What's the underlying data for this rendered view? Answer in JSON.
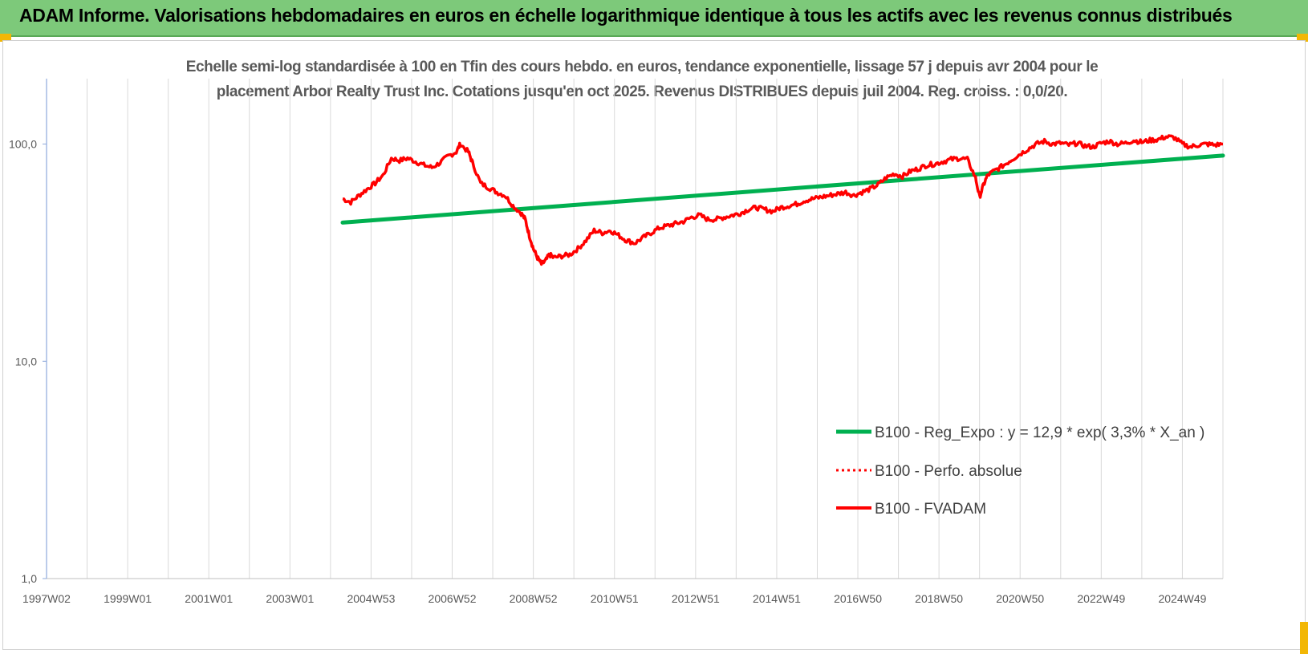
{
  "header": {
    "title": "ADAM Informe. Valorisations hebdomadaires en euros en échelle logarithmique identique à tous les actifs avec les revenus connus distribués"
  },
  "colors": {
    "banner": "#7dc97a",
    "corner_accent": "#f2b705",
    "trend_line": "#00b050",
    "fvadam_line": "#ff0000",
    "grid": "#d9d9d9"
  },
  "chart_data": {
    "type": "line",
    "title": "Echelle semi-log standardisée à 100 en Tfin des cours hebdo. en euros, tendance exponentielle, lissage 57 j depuis avr 2004 pour le placement Arbor Realty Trust Inc. Cotations jusqu'en oct 2025. Revenus DISTRIBUES depuis juil 2004. Reg. croiss. : 0,0/20.",
    "title_lines": [
      "Echelle semi-log standardisée à 100 en Tfin des cours hebdo. en euros, tendance exponentielle, lissage 57 j depuis avr 2004 pour le",
      "placement Arbor Realty Trust Inc. Cotations jusqu'en oct 2025. Revenus DISTRIBUES depuis juil 2004. Reg. croiss. : 0,0/20."
    ],
    "y_scale": "log",
    "ylim": [
      1,
      200
    ],
    "y_ticks": [
      {
        "value": 1,
        "label": "1,0"
      },
      {
        "value": 10,
        "label": "10,0"
      },
      {
        "value": 100,
        "label": "100,0"
      }
    ],
    "xlim": [
      1997.0,
      2026.0
    ],
    "x_ticks": [
      {
        "value": 1997.0,
        "label": "1997W02"
      },
      {
        "value": 1999.0,
        "label": "1999W01"
      },
      {
        "value": 2001.0,
        "label": "2001W01"
      },
      {
        "value": 2003.0,
        "label": "2003W01"
      },
      {
        "value": 2005.0,
        "label": "2004W53"
      },
      {
        "value": 2007.0,
        "label": "2006W52"
      },
      {
        "value": 2009.0,
        "label": "2008W52"
      },
      {
        "value": 2011.0,
        "label": "2010W51"
      },
      {
        "value": 2013.0,
        "label": "2012W51"
      },
      {
        "value": 2015.0,
        "label": "2014W51"
      },
      {
        "value": 2017.0,
        "label": "2016W50"
      },
      {
        "value": 2019.0,
        "label": "2018W50"
      },
      {
        "value": 2021.0,
        "label": "2020W50"
      },
      {
        "value": 2023.0,
        "label": "2022W49"
      },
      {
        "value": 2025.0,
        "label": "2024W49"
      }
    ],
    "grid": "vertical",
    "legend_position": "bottom-right",
    "series": [
      {
        "name": "B100 - Reg_Expo : y = 12,9 * exp( 3,3% * X_an )",
        "style": "solid-green",
        "x": [
          2004.3,
          2026.0
        ],
        "y": [
          43.5,
          88.5
        ]
      },
      {
        "name": "B100 - Perfo. absolue",
        "style": "dotted-red",
        "x": [],
        "y": []
      },
      {
        "name": "B100 - FVADAM",
        "style": "solid-red",
        "x": [
          2004.3,
          2004.5,
          2004.7,
          2004.9,
          2005.1,
          2005.3,
          2005.5,
          2005.7,
          2005.9,
          2006.1,
          2006.3,
          2006.5,
          2006.7,
          2006.9,
          2007.1,
          2007.2,
          2007.4,
          2007.5,
          2007.7,
          2007.9,
          2008.1,
          2008.3,
          2008.5,
          2008.7,
          2008.8,
          2008.9,
          2009.0,
          2009.1,
          2009.2,
          2009.3,
          2009.4,
          2009.5,
          2009.7,
          2009.9,
          2010.1,
          2010.3,
          2010.5,
          2010.7,
          2010.9,
          2011.1,
          2011.3,
          2011.5,
          2011.7,
          2011.9,
          2012.1,
          2012.3,
          2012.5,
          2012.7,
          2012.9,
          2013.1,
          2013.3,
          2013.5,
          2013.7,
          2013.9,
          2014.1,
          2014.3,
          2014.5,
          2014.7,
          2014.9,
          2015.1,
          2015.3,
          2015.5,
          2015.7,
          2015.9,
          2016.1,
          2016.3,
          2016.5,
          2016.7,
          2016.9,
          2017.1,
          2017.3,
          2017.5,
          2017.7,
          2017.9,
          2018.1,
          2018.3,
          2018.5,
          2018.7,
          2018.9,
          2019.1,
          2019.3,
          2019.5,
          2019.7,
          2019.9,
          2020.0,
          2020.1,
          2020.2,
          2020.4,
          2020.6,
          2020.8,
          2021.0,
          2021.2,
          2021.4,
          2021.6,
          2021.8,
          2022.0,
          2022.2,
          2022.4,
          2022.6,
          2022.8,
          2023.0,
          2023.2,
          2023.4,
          2023.6,
          2023.8,
          2024.0,
          2024.2,
          2024.4,
          2024.6,
          2024.8,
          2025.0,
          2025.2,
          2025.4,
          2025.6,
          2025.8,
          2026.0
        ],
        "y": [
          56,
          54,
          58,
          62,
          66,
          72,
          86,
          84,
          86,
          83,
          80,
          78,
          82,
          88,
          92,
          100,
          92,
          82,
          66,
          63,
          60,
          58,
          52,
          48,
          45,
          38,
          33,
          30,
          28,
          29,
          31,
          30,
          30.5,
          31,
          33,
          36,
          40,
          39,
          40,
          38,
          36,
          35,
          37,
          39,
          41,
          42,
          43,
          44,
          46,
          47,
          45,
          45,
          46,
          47,
          48,
          50,
          51,
          50,
          49,
          51,
          52,
          53,
          55,
          56,
          57,
          58,
          59,
          60,
          58,
          60,
          62,
          65,
          70,
          73,
          71,
          75,
          77,
          80,
          81,
          83,
          85,
          86,
          85,
          70,
          57,
          65,
          72,
          76,
          80,
          85,
          90,
          95,
          100,
          103,
          100,
          101,
          99,
          101,
          98,
          97,
          101,
          103,
          100,
          101,
          104,
          102,
          104,
          105,
          108,
          107,
          100,
          97,
          99,
          100,
          99,
          100
        ]
      }
    ]
  }
}
